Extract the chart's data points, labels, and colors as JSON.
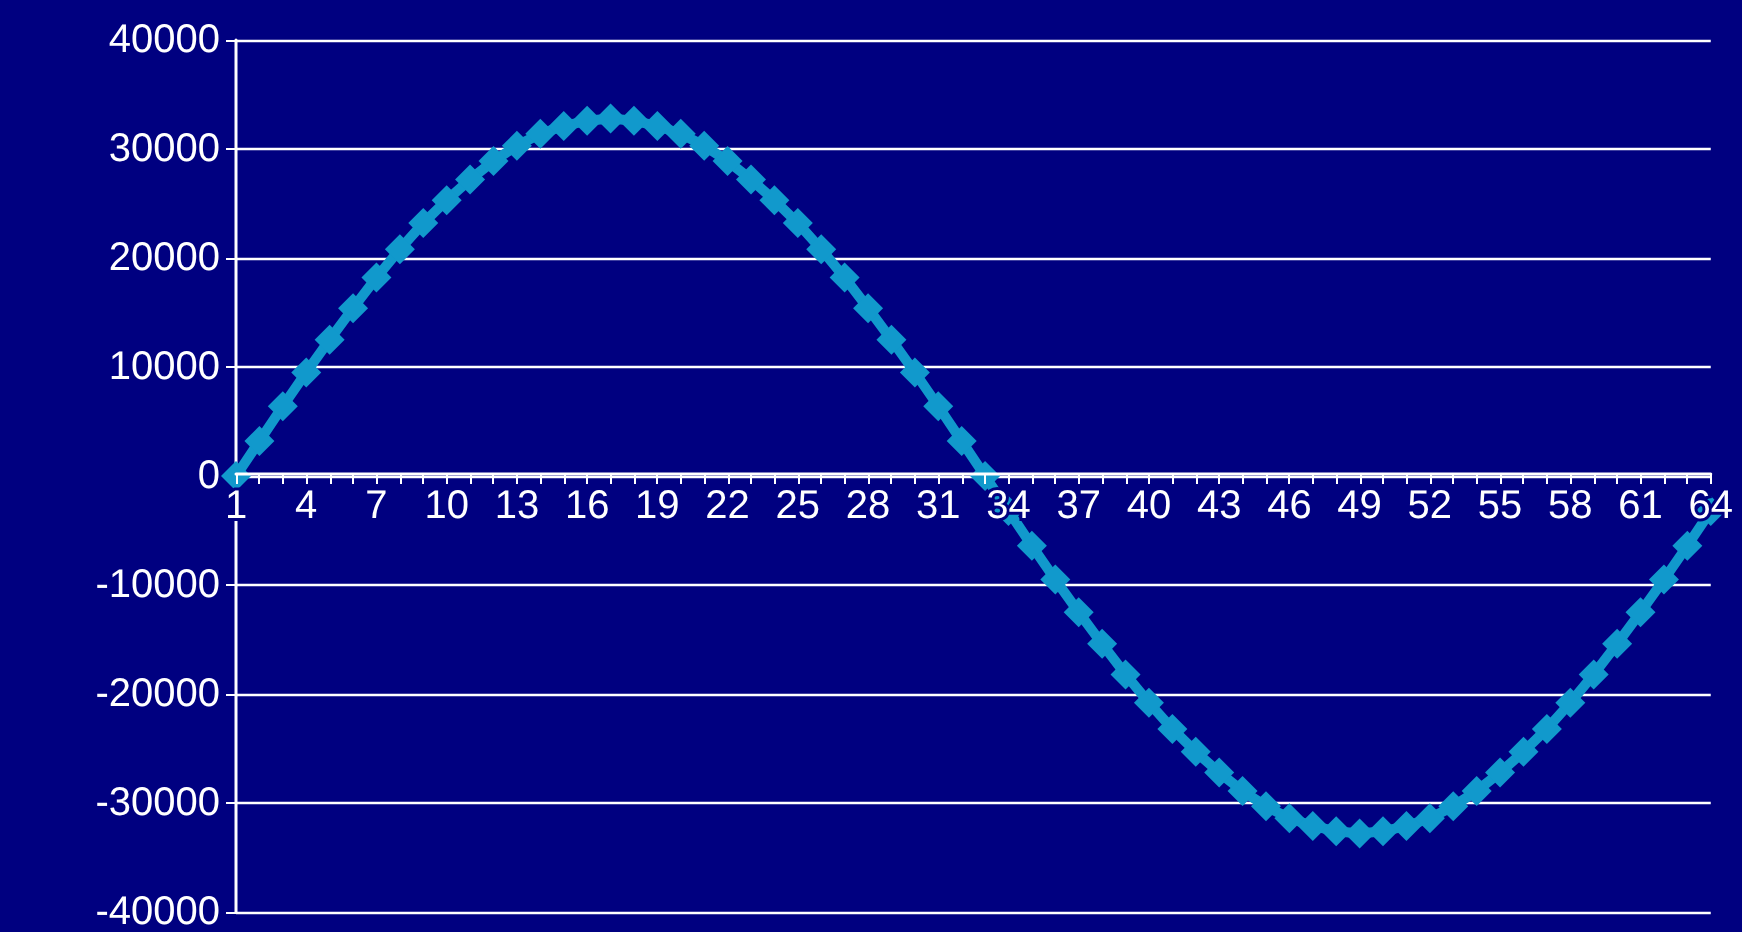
{
  "chart_data": {
    "type": "line",
    "categories": [
      "1",
      null,
      null,
      "4",
      null,
      null,
      "7",
      null,
      null,
      "10",
      null,
      null,
      "13",
      null,
      null,
      "16",
      null,
      null,
      "19",
      null,
      null,
      "22",
      null,
      null,
      "25",
      null,
      null,
      "28",
      null,
      null,
      "31",
      null,
      null,
      "34",
      null,
      null,
      "37",
      null,
      null,
      "40",
      null,
      null,
      "43",
      null,
      null,
      "46",
      null,
      null,
      "49",
      null,
      null,
      "52",
      null,
      null,
      "55",
      null,
      null,
      "58",
      null,
      null,
      "61",
      null,
      null,
      "64"
    ],
    "series": [
      {
        "color": "#1199cc",
        "values": [
          0,
          3200,
          6400,
          9500,
          12500,
          15400,
          18200,
          20800,
          23200,
          25300,
          27200,
          28900,
          30300,
          31400,
          32100,
          32600,
          32800,
          32600,
          32100,
          31400,
          30300,
          28900,
          27200,
          25300,
          23200,
          20800,
          18200,
          15400,
          12500,
          9500,
          6400,
          3200,
          0,
          -3200,
          -6400,
          -9500,
          -12500,
          -15400,
          -18200,
          -20800,
          -23200,
          -25300,
          -27200,
          -28900,
          -30300,
          -31400,
          -32100,
          -32600,
          -32800,
          -32600,
          -32100,
          -31400,
          -30300,
          -28900,
          -27200,
          -25300,
          -23200,
          -20800,
          -18200,
          -15400,
          -12500,
          -9500,
          -6400,
          -3200
        ]
      }
    ],
    "ylim": [
      -40000,
      40000
    ],
    "yticks": [
      -40000,
      -30000,
      -20000,
      -10000,
      0,
      10000,
      20000,
      30000,
      40000
    ],
    "grid": "y",
    "marker": "diamond",
    "line_style": "solid"
  }
}
